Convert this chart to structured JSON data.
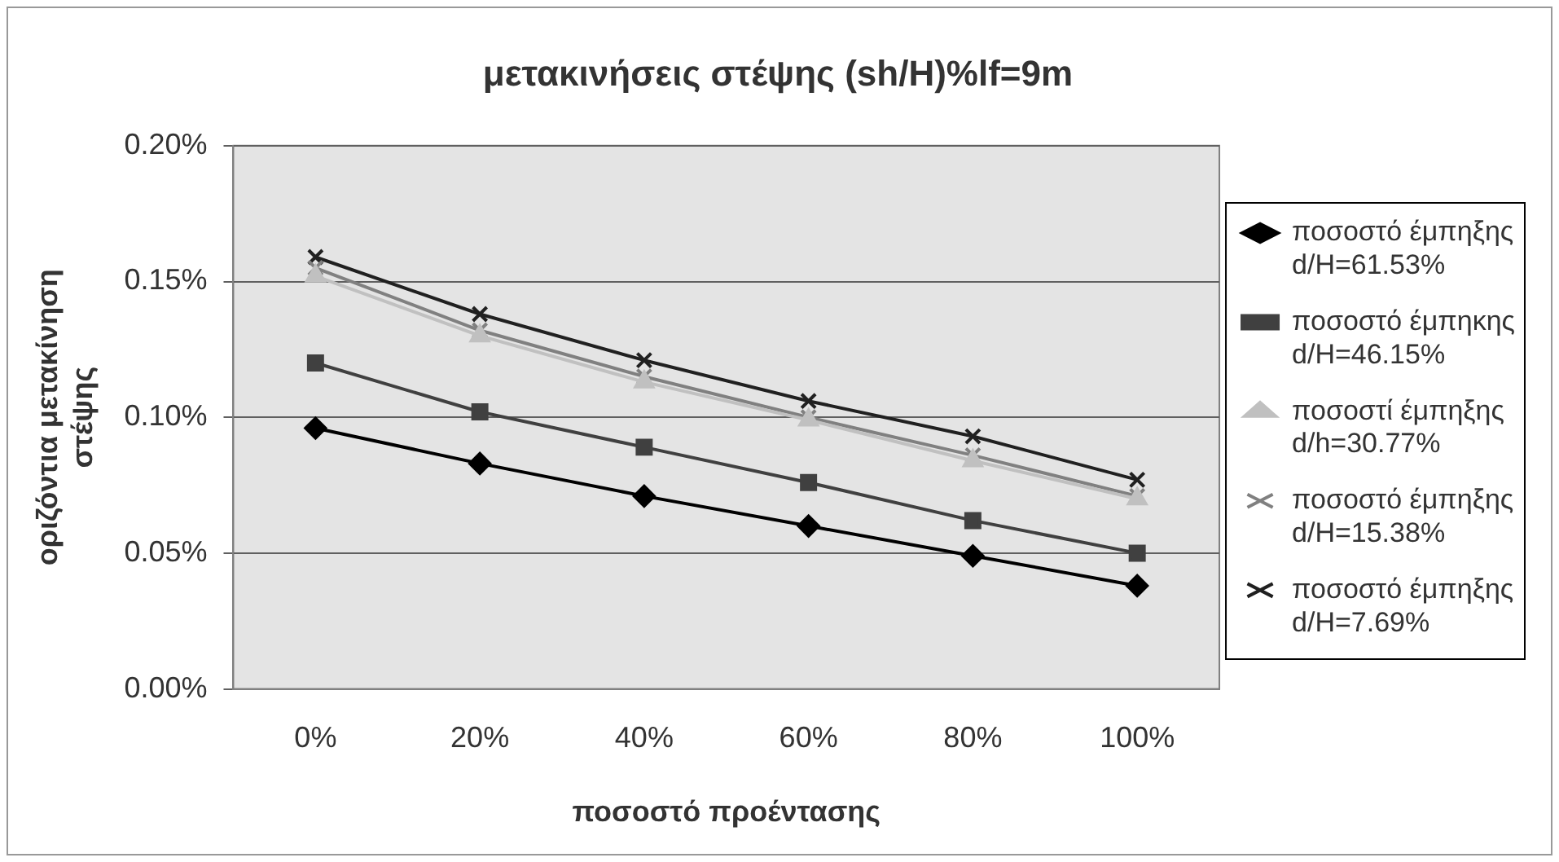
{
  "chart_data": {
    "type": "line",
    "title": "μετακινήσεις στέψης (sh/H)%lf=9m",
    "xlabel": "ποσοστό προέντασης",
    "ylabel": "οριζόντια μετακίνηση στέψης",
    "categories": [
      "0%",
      "20%",
      "40%",
      "60%",
      "80%",
      "100%"
    ],
    "series": [
      {
        "name": "ποσοστό έμπηξης d/H=61.53%",
        "color": "#000000",
        "marker": "diamond",
        "values": [
          0.096,
          0.083,
          0.071,
          0.06,
          0.049,
          0.038
        ]
      },
      {
        "name": "ποσοστό έμπηκης d/H=46.15%",
        "color": "#404040",
        "marker": "square",
        "values": [
          0.12,
          0.102,
          0.089,
          0.076,
          0.062,
          0.05
        ]
      },
      {
        "name": "ποσοστί έμπηξης d/h=30.77%",
        "color": "#c0c0c0",
        "marker": "triangle",
        "values": [
          0.152,
          0.13,
          0.113,
          0.099,
          0.084,
          0.07
        ]
      },
      {
        "name": "ποσοστό έμπηξης d/H=15.38%",
        "color": "#808080",
        "marker": "cross",
        "values": [
          0.155,
          0.132,
          0.115,
          0.1,
          0.086,
          0.071
        ]
      },
      {
        "name": "ποσοστό έμπηξης d/H=7.69%",
        "color": "#202020",
        "marker": "cross",
        "values": [
          0.159,
          0.138,
          0.121,
          0.106,
          0.093,
          0.077
        ]
      }
    ],
    "ylim": [
      0,
      0.2
    ],
    "yticks": [
      {
        "value": 0,
        "label": "0.00%"
      },
      {
        "value": 0.05,
        "label": "0.05%"
      },
      {
        "value": 0.1,
        "label": "0.10%"
      },
      {
        "value": 0.15,
        "label": "0.15%"
      },
      {
        "value": 0.2,
        "label": "0.20%"
      }
    ],
    "grid": "y",
    "legend": "right",
    "line_style": "solid"
  }
}
